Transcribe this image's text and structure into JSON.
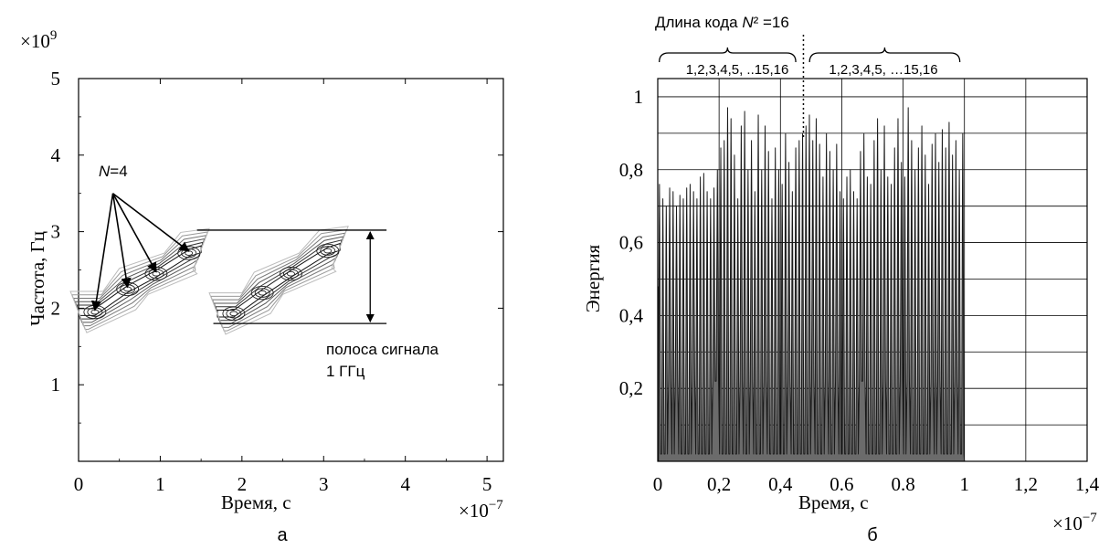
{
  "chart_data": [
    {
      "id": "a",
      "panel_label": "а",
      "type": "contour",
      "xlabel": "Время, с",
      "ylabel": "Частота, Гц",
      "x_multiplier": "×10",
      "x_multiplier_exp": "−7",
      "y_multiplier": "×10",
      "y_multiplier_exp": "9",
      "xlim": [
        0,
        5.2
      ],
      "ylim": [
        0,
        5
      ],
      "x_ticks": [
        0,
        1,
        2,
        3,
        4,
        5
      ],
      "x_tick_labels": [
        "0",
        "1",
        "2",
        "3",
        "4",
        "5"
      ],
      "y_ticks": [
        1,
        2,
        3,
        4,
        5
      ],
      "y_tick_labels": [
        "1",
        "2",
        "3",
        "4",
        "5"
      ],
      "grid": false,
      "contour_groups": [
        {
          "name": "",
          "points": [
            [
              0.2,
              1.95
            ],
            [
              0.6,
              2.25
            ],
            [
              0.95,
              2.45
            ],
            [
              1.35,
              2.72
            ]
          ]
        },
        {
          "name": "",
          "points": [
            [
              1.9,
              1.93
            ],
            [
              2.25,
              2.2
            ],
            [
              2.6,
              2.45
            ],
            [
              3.05,
              2.75
            ]
          ]
        }
      ],
      "annotations": {
        "n_label_italic": "N",
        "n_label_value": "=4",
        "band_line1": "полоса сигнала",
        "band_line2": "1 ГГц",
        "band_range": [
          1.8,
          3.02
        ]
      }
    },
    {
      "id": "b",
      "panel_label": "б",
      "type": "line",
      "xlabel": "Время, с",
      "ylabel": "Энергия",
      "x_multiplier": "×10",
      "x_multiplier_exp": "−7",
      "xlim": [
        0,
        1.4
      ],
      "ylim": [
        0,
        1.05
      ],
      "x_ticks": [
        0,
        0.2,
        0.4,
        0.6,
        0.8,
        1,
        1.2,
        1.4
      ],
      "x_tick_labels": [
        "0",
        "0,2",
        "0,4",
        "0.6",
        "0.8",
        "1",
        "1,2",
        "1,4"
      ],
      "y_ticks": [
        0.2,
        0.4,
        0.6,
        0.8,
        1
      ],
      "y_tick_labels": [
        "0,2",
        "0,4",
        "0,6",
        "0,8",
        "1"
      ],
      "grid": true,
      "series": [
        {
          "name": "",
          "signal_range": [
            0,
            1
          ],
          "pulse_count": 90,
          "peaks": [
            0.76,
            0.72,
            0.7,
            0.75,
            0.74,
            0.7,
            0.73,
            0.72,
            0.75,
            0.76,
            0.74,
            0.72,
            0.78,
            0.79,
            0.74,
            0.72,
            0.75,
            0.8,
            0.86,
            0.88,
            0.97,
            0.94,
            0.84,
            0.72,
            0.92,
            0.96,
            0.8,
            0.88,
            0.74,
            0.95,
            0.8,
            0.92,
            0.85,
            0.72,
            0.86,
            0.8,
            0.76,
            0.9,
            0.82,
            0.74,
            0.86,
            0.88,
            0.9,
            0.92,
            0.95,
            0.88,
            0.94,
            0.87,
            0.78,
            0.9,
            0.85,
            0.8,
            0.87,
            0.74,
            0.72,
            0.78,
            0.8,
            0.74,
            0.72,
            0.85,
            0.9,
            0.78,
            0.76,
            0.88,
            0.94,
            0.8,
            0.92,
            0.78,
            0.76,
            0.86,
            0.94,
            0.82,
            0.78,
            0.97,
            0.88,
            0.8,
            0.86,
            0.92,
            0.84,
            0.76,
            0.87,
            0.9,
            0.82,
            0.91,
            0.86,
            0.93,
            0.84,
            0.88,
            0.8,
            0.9
          ]
        }
      ],
      "annotations": {
        "code_length_prefix": "Длина кода ",
        "code_length_italic": "N",
        "code_length_suffix": "² =16",
        "group_left": "1,2,3,4,5, ..15,16",
        "group_right": "1,2,3,4,5, …15,16",
        "divider_x": 0.475
      }
    }
  ]
}
